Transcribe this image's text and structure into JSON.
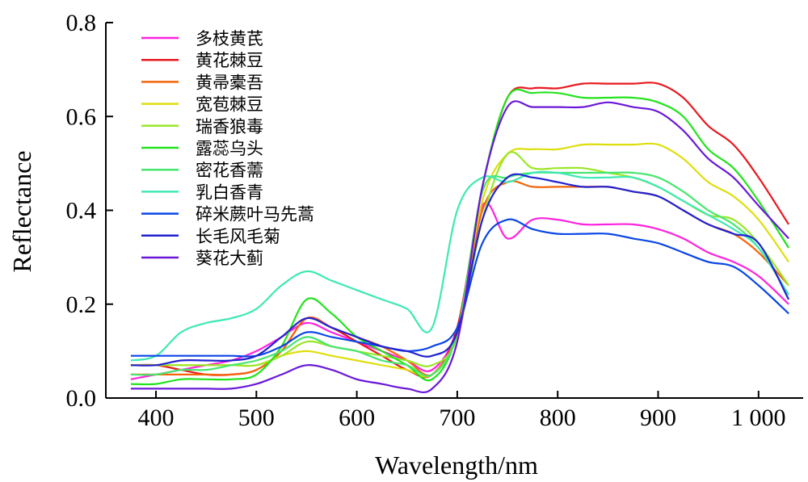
{
  "chart_data": {
    "type": "line",
    "xlabel": "Wavelength/nm",
    "ylabel": "Reflectance",
    "xlim": [
      375,
      1030
    ],
    "ylim": [
      0.0,
      0.8
    ],
    "x_ticks": [
      400,
      500,
      600,
      700,
      800,
      900,
      1000
    ],
    "x_tick_labels": [
      "400",
      "500",
      "600",
      "700",
      "800",
      "900",
      "1 000"
    ],
    "y_ticks": [
      0.0,
      0.2,
      0.4,
      0.6,
      0.8
    ],
    "y_tick_labels": [
      "0.0",
      "0.2",
      "0.4",
      "0.6",
      "0.8"
    ],
    "grid": false,
    "legend_position": "top-left",
    "x": [
      375,
      400,
      425,
      450,
      475,
      500,
      525,
      550,
      575,
      600,
      625,
      650,
      675,
      700,
      725,
      750,
      775,
      800,
      825,
      850,
      875,
      900,
      925,
      950,
      975,
      1000,
      1030
    ],
    "series": [
      {
        "name": "多枝黄芪",
        "color": "#ff22dd",
        "values": [
          0.04,
          0.05,
          0.06,
          0.07,
          0.08,
          0.1,
          0.13,
          0.16,
          0.14,
          0.12,
          0.1,
          0.08,
          0.06,
          0.15,
          0.41,
          0.34,
          0.38,
          0.38,
          0.37,
          0.37,
          0.37,
          0.36,
          0.34,
          0.31,
          0.29,
          0.26,
          0.2
        ]
      },
      {
        "name": "黄花棘豆",
        "color": "#e8181e",
        "values": [
          0.07,
          0.07,
          0.06,
          0.05,
          0.05,
          0.06,
          0.1,
          0.17,
          0.15,
          0.12,
          0.09,
          0.06,
          0.05,
          0.15,
          0.45,
          0.64,
          0.66,
          0.66,
          0.67,
          0.67,
          0.67,
          0.67,
          0.64,
          0.58,
          0.54,
          0.47,
          0.37
        ]
      },
      {
        "name": "黄帚橐吾",
        "color": "#f5640a",
        "values": [
          0.05,
          0.05,
          0.05,
          0.05,
          0.05,
          0.06,
          0.1,
          0.17,
          0.15,
          0.13,
          0.11,
          0.08,
          0.05,
          0.14,
          0.4,
          0.46,
          0.45,
          0.45,
          0.45,
          0.45,
          0.44,
          0.43,
          0.4,
          0.37,
          0.35,
          0.31,
          0.24
        ]
      },
      {
        "name": "宽苞棘豆",
        "color": "#dede0c",
        "values": [
          0.07,
          0.07,
          0.07,
          0.07,
          0.07,
          0.07,
          0.09,
          0.1,
          0.09,
          0.08,
          0.07,
          0.06,
          0.05,
          0.14,
          0.42,
          0.52,
          0.53,
          0.53,
          0.54,
          0.54,
          0.54,
          0.54,
          0.51,
          0.46,
          0.43,
          0.38,
          0.29
        ]
      },
      {
        "name": "瑞香狼毒",
        "color": "#9ae627",
        "values": [
          0.07,
          0.07,
          0.07,
          0.07,
          0.07,
          0.07,
          0.09,
          0.12,
          0.11,
          0.1,
          0.09,
          0.08,
          0.07,
          0.13,
          0.38,
          0.52,
          0.49,
          0.49,
          0.49,
          0.48,
          0.47,
          0.45,
          0.42,
          0.39,
          0.38,
          0.33,
          0.24
        ]
      },
      {
        "name": "露蕊乌头",
        "color": "#22e31c",
        "values": [
          0.03,
          0.03,
          0.04,
          0.04,
          0.04,
          0.05,
          0.11,
          0.21,
          0.18,
          0.13,
          0.1,
          0.07,
          0.04,
          0.14,
          0.45,
          0.64,
          0.65,
          0.65,
          0.64,
          0.64,
          0.64,
          0.63,
          0.6,
          0.53,
          0.49,
          0.42,
          0.32
        ]
      },
      {
        "name": "密花香薷",
        "color": "#46e66d",
        "values": [
          0.05,
          0.05,
          0.06,
          0.06,
          0.07,
          0.08,
          0.1,
          0.13,
          0.11,
          0.1,
          0.08,
          0.07,
          0.05,
          0.14,
          0.44,
          0.47,
          0.48,
          0.48,
          0.48,
          0.48,
          0.48,
          0.47,
          0.44,
          0.4,
          0.37,
          0.32,
          0.22
        ]
      },
      {
        "name": "乳白香青",
        "color": "#3ee8b4",
        "values": [
          0.08,
          0.09,
          0.14,
          0.16,
          0.17,
          0.19,
          0.24,
          0.27,
          0.25,
          0.23,
          0.21,
          0.19,
          0.15,
          0.4,
          0.47,
          0.46,
          0.48,
          0.48,
          0.47,
          0.47,
          0.47,
          0.45,
          0.42,
          0.39,
          0.36,
          0.32,
          0.22
        ]
      },
      {
        "name": "碎米蕨叶马先蒿",
        "color": "#0a46e6",
        "values": [
          0.09,
          0.09,
          0.09,
          0.09,
          0.09,
          0.09,
          0.11,
          0.14,
          0.13,
          0.12,
          0.11,
          0.1,
          0.11,
          0.15,
          0.33,
          0.38,
          0.36,
          0.35,
          0.35,
          0.35,
          0.34,
          0.33,
          0.31,
          0.29,
          0.28,
          0.24,
          0.18
        ]
      },
      {
        "name": "长毛风毛菊",
        "color": "#2222d0",
        "values": [
          0.07,
          0.07,
          0.08,
          0.08,
          0.08,
          0.09,
          0.13,
          0.17,
          0.15,
          0.13,
          0.11,
          0.1,
          0.09,
          0.14,
          0.38,
          0.47,
          0.47,
          0.46,
          0.45,
          0.45,
          0.44,
          0.43,
          0.4,
          0.37,
          0.35,
          0.33,
          0.21
        ]
      },
      {
        "name": "葵花大蓟",
        "color": "#6a18d8",
        "values": [
          0.02,
          0.02,
          0.02,
          0.02,
          0.02,
          0.03,
          0.05,
          0.07,
          0.06,
          0.04,
          0.03,
          0.02,
          0.02,
          0.12,
          0.45,
          0.62,
          0.62,
          0.62,
          0.62,
          0.63,
          0.62,
          0.61,
          0.57,
          0.51,
          0.47,
          0.41,
          0.34
        ]
      }
    ]
  }
}
